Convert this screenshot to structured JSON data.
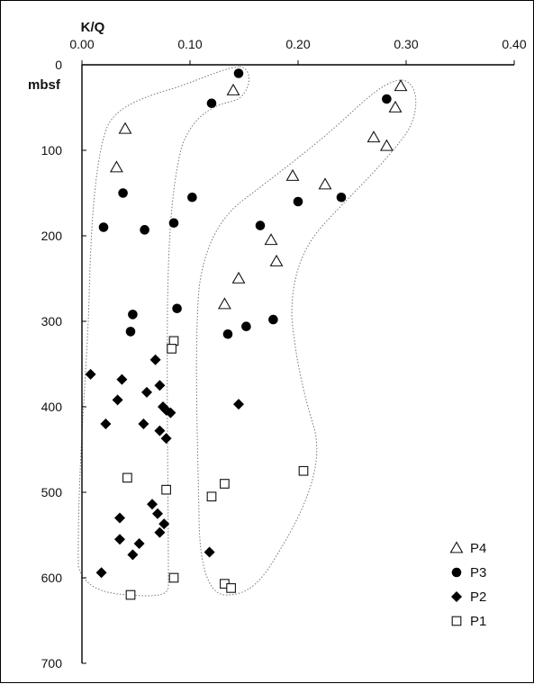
{
  "chart_data": {
    "type": "scatter",
    "xlabel": "K/Q",
    "ylabel": "mbsf",
    "xlim": [
      0,
      0.4
    ],
    "ylim": [
      0,
      700
    ],
    "y_reversed": true,
    "x_axis_position": "top",
    "x_ticks": [
      "0.00",
      "0.10",
      "0.20",
      "0.30",
      "0.40"
    ],
    "y_ticks": [
      "0",
      "100",
      "200",
      "300",
      "400",
      "500",
      "600",
      "700"
    ],
    "grid": false,
    "legend_position": "bottom-right",
    "series": [
      {
        "name": "P4",
        "marker": "open-triangle",
        "points": [
          [
            0.295,
            25
          ],
          [
            0.14,
            30
          ],
          [
            0.29,
            50
          ],
          [
            0.04,
            75
          ],
          [
            0.27,
            85
          ],
          [
            0.282,
            95
          ],
          [
            0.032,
            120
          ],
          [
            0.195,
            130
          ],
          [
            0.225,
            140
          ],
          [
            0.175,
            205
          ],
          [
            0.18,
            230
          ],
          [
            0.145,
            250
          ],
          [
            0.132,
            280
          ]
        ]
      },
      {
        "name": "P3",
        "marker": "filled-circle",
        "points": [
          [
            0.145,
            10
          ],
          [
            0.282,
            40
          ],
          [
            0.12,
            45
          ],
          [
            0.038,
            150
          ],
          [
            0.102,
            155
          ],
          [
            0.24,
            155
          ],
          [
            0.2,
            160
          ],
          [
            0.02,
            190
          ],
          [
            0.085,
            185
          ],
          [
            0.058,
            193
          ],
          [
            0.165,
            188
          ],
          [
            0.047,
            292
          ],
          [
            0.088,
            285
          ],
          [
            0.045,
            312
          ],
          [
            0.135,
            315
          ],
          [
            0.152,
            306
          ],
          [
            0.177,
            298
          ]
        ]
      },
      {
        "name": "P2",
        "marker": "filled-diamond",
        "points": [
          [
            0.008,
            362
          ],
          [
            0.037,
            368
          ],
          [
            0.068,
            345
          ],
          [
            0.06,
            383
          ],
          [
            0.072,
            375
          ],
          [
            0.033,
            392
          ],
          [
            0.075,
            400
          ],
          [
            0.078,
            404
          ],
          [
            0.082,
            407
          ],
          [
            0.145,
            397
          ],
          [
            0.022,
            420
          ],
          [
            0.057,
            420
          ],
          [
            0.072,
            428
          ],
          [
            0.078,
            437
          ],
          [
            0.065,
            514
          ],
          [
            0.07,
            525
          ],
          [
            0.035,
            530
          ],
          [
            0.076,
            537
          ],
          [
            0.072,
            547
          ],
          [
            0.035,
            555
          ],
          [
            0.053,
            560
          ],
          [
            0.047,
            573
          ],
          [
            0.118,
            570
          ],
          [
            0.018,
            594
          ]
        ]
      },
      {
        "name": "P1",
        "marker": "open-square",
        "points": [
          [
            0.085,
            323
          ],
          [
            0.083,
            332
          ],
          [
            0.042,
            483
          ],
          [
            0.078,
            497
          ],
          [
            0.132,
            490
          ],
          [
            0.12,
            505
          ],
          [
            0.205,
            475
          ],
          [
            0.085,
            600
          ],
          [
            0.132,
            607
          ],
          [
            0.138,
            612
          ],
          [
            0.045,
            620
          ]
        ]
      }
    ]
  }
}
